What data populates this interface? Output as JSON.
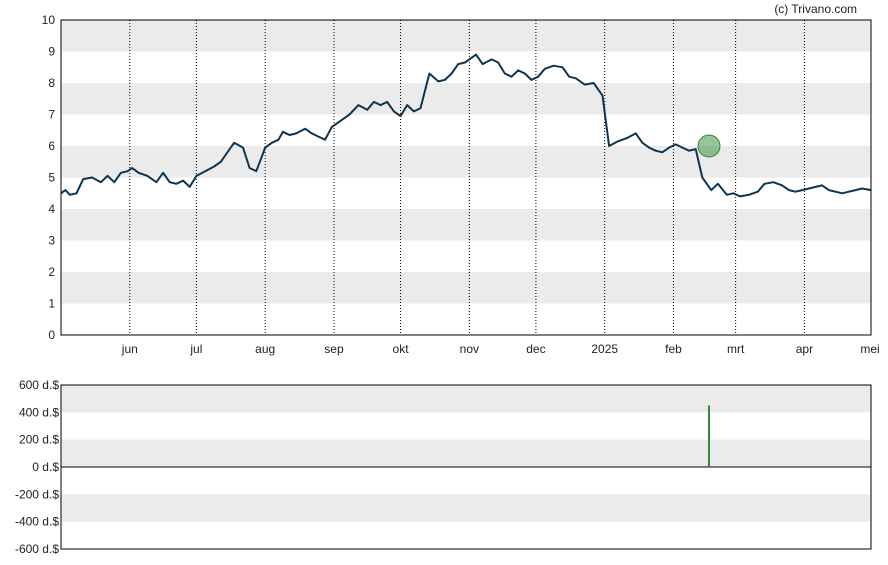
{
  "credit": "(c) Trivano.com",
  "colors": {
    "line": "#0d3552",
    "band": "#ebebeb",
    "marker": "#2e8b3a",
    "bar": "#2e8b3a",
    "axis": "#000000"
  },
  "chart_data": [
    {
      "type": "line",
      "title": "",
      "xlabel": "",
      "ylabel": "",
      "ylim": [
        0,
        10
      ],
      "yticks": [
        "0",
        "1",
        "2",
        "3",
        "4",
        "5",
        "6",
        "7",
        "8",
        "9",
        "10"
      ],
      "xlim": [
        "2024-05-01",
        "2025-05-01"
      ],
      "xticks": [
        {
          "date": "2024-06-01",
          "label": "jun"
        },
        {
          "date": "2024-07-01",
          "label": "jul"
        },
        {
          "date": "2024-08-01",
          "label": "aug"
        },
        {
          "date": "2024-09-01",
          "label": "sep"
        },
        {
          "date": "2024-10-01",
          "label": "okt"
        },
        {
          "date": "2024-11-01",
          "label": "nov"
        },
        {
          "date": "2024-12-01",
          "label": "dec"
        },
        {
          "date": "2025-01-01",
          "label": "2025"
        },
        {
          "date": "2025-02-01",
          "label": "feb"
        },
        {
          "date": "2025-03-01",
          "label": "mrt"
        },
        {
          "date": "2025-04-01",
          "label": "apr"
        },
        {
          "date": "2025-05-01",
          "label": "mei"
        }
      ],
      "grid": "alternating horizontal bands, dotted vertical month lines",
      "series": [
        {
          "x": [
            "2024-05-01",
            "2024-05-03",
            "2024-05-05",
            "2024-05-08",
            "2024-05-11",
            "2024-05-15",
            "2024-05-19",
            "2024-05-22",
            "2024-05-25",
            "2024-05-28",
            "2024-05-31",
            "2024-06-02",
            "2024-06-05",
            "2024-06-09",
            "2024-06-13",
            "2024-06-16",
            "2024-06-19",
            "2024-06-22",
            "2024-06-25",
            "2024-06-28",
            "2024-07-01",
            "2024-07-05",
            "2024-07-09",
            "2024-07-12",
            "2024-07-15",
            "2024-07-18",
            "2024-07-22",
            "2024-07-25",
            "2024-07-28",
            "2024-08-01",
            "2024-08-04",
            "2024-08-07",
            "2024-08-09",
            "2024-08-12",
            "2024-08-15",
            "2024-08-19",
            "2024-08-22",
            "2024-08-25",
            "2024-08-28",
            "2024-08-31",
            "2024-09-04",
            "2024-09-08",
            "2024-09-12",
            "2024-09-16",
            "2024-09-19",
            "2024-09-22",
            "2024-09-25",
            "2024-09-28",
            "2024-10-01",
            "2024-10-04",
            "2024-10-07",
            "2024-10-10",
            "2024-10-14",
            "2024-10-18",
            "2024-10-21",
            "2024-10-24",
            "2024-10-27",
            "2024-10-30",
            "2024-11-01",
            "2024-11-04",
            "2024-11-07",
            "2024-11-11",
            "2024-11-14",
            "2024-11-17",
            "2024-11-20",
            "2024-11-23",
            "2024-11-26",
            "2024-11-29",
            "2024-12-02",
            "2024-12-05",
            "2024-12-09",
            "2024-12-13",
            "2024-12-16",
            "2024-12-19",
            "2024-12-23",
            "2024-12-27",
            "2024-12-31",
            "2025-01-03",
            "2025-01-07",
            "2025-01-11",
            "2025-01-15",
            "2025-01-18",
            "2025-01-21",
            "2025-01-24",
            "2025-01-27",
            "2025-01-30",
            "2025-02-02",
            "2025-02-05",
            "2025-02-08",
            "2025-02-11",
            "2025-02-14",
            "2025-02-18",
            "2025-02-21",
            "2025-02-25",
            "2025-02-28",
            "2025-03-03",
            "2025-03-07",
            "2025-03-11",
            "2025-03-14",
            "2025-03-18",
            "2025-03-22",
            "2025-03-25",
            "2025-03-28",
            "2025-03-31",
            "2025-04-03",
            "2025-04-06",
            "2025-04-09",
            "2025-04-12",
            "2025-04-15",
            "2025-04-18",
            "2025-04-21",
            "2025-04-24",
            "2025-04-27",
            "2025-05-01"
          ],
          "y": [
            4.5,
            4.6,
            4.45,
            4.5,
            4.95,
            5.0,
            4.85,
            5.05,
            4.85,
            5.15,
            5.2,
            5.3,
            5.15,
            5.05,
            4.85,
            5.15,
            4.85,
            4.8,
            4.9,
            4.7,
            5.05,
            5.2,
            5.35,
            5.5,
            5.8,
            6.1,
            5.95,
            5.3,
            5.2,
            5.95,
            6.1,
            6.2,
            6.45,
            6.35,
            6.4,
            6.55,
            6.4,
            6.3,
            6.2,
            6.6,
            6.8,
            7.0,
            7.3,
            7.15,
            7.4,
            7.3,
            7.4,
            7.1,
            6.95,
            7.3,
            7.1,
            7.2,
            8.3,
            8.05,
            8.1,
            8.3,
            8.6,
            8.65,
            8.75,
            8.9,
            8.6,
            8.75,
            8.65,
            8.3,
            8.2,
            8.4,
            8.3,
            8.1,
            8.2,
            8.45,
            8.55,
            8.5,
            8.2,
            8.15,
            7.95,
            8.0,
            7.6,
            6.0,
            6.15,
            6.25,
            6.4,
            6.1,
            5.95,
            5.85,
            5.8,
            5.95,
            6.05,
            5.95,
            5.85,
            5.9,
            5.0,
            4.6,
            4.8,
            4.45,
            4.5,
            4.4,
            4.45,
            4.55,
            4.8,
            4.85,
            4.75,
            4.6,
            4.55,
            4.6,
            4.65,
            4.7,
            4.75,
            4.6,
            4.55,
            4.5,
            4.55,
            4.6,
            4.65,
            4.6
          ]
        }
      ],
      "marker": {
        "x": "2025-02-17",
        "y": 6.0
      }
    },
    {
      "type": "bar",
      "title": "",
      "xlabel": "",
      "ylabel": "",
      "ylim": [
        -600,
        600
      ],
      "yticks": [
        "600 d.$",
        "400 d.$",
        "200 d.$",
        "0 d.$",
        "-200 d.$",
        "-400 d.$",
        "-600 d.$"
      ],
      "xlim": [
        "2024-05-01",
        "2025-05-01"
      ],
      "bars": [
        {
          "x": "2025-02-17",
          "value": 450
        }
      ]
    }
  ]
}
